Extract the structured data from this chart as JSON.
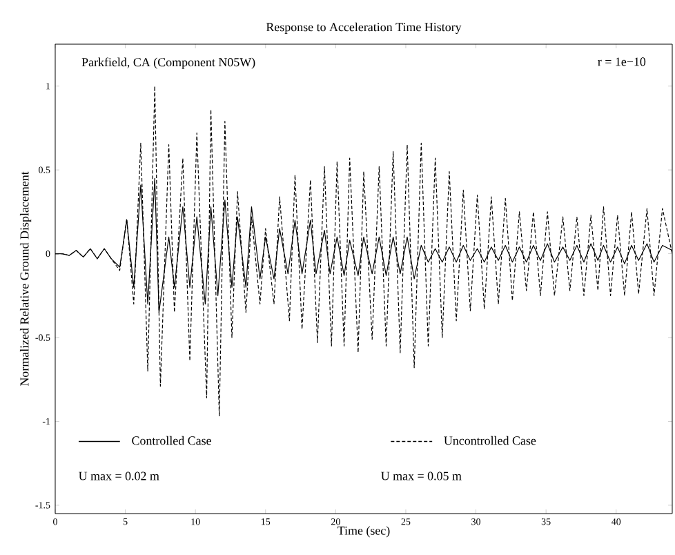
{
  "chart_data": {
    "type": "line",
    "title": "Response to Acceleration Time History",
    "xlabel": "Time (sec)",
    "ylabel": "Normalized Relative Ground Displacement",
    "annotations": [
      "Parkfield, CA (Component N05W)",
      "r = 1e−10",
      "U max = 0.02 m",
      "U max = 0.05 m"
    ],
    "xlim": [
      0,
      44
    ],
    "ylim": [
      -1.55,
      1.25
    ],
    "xticks": [
      0,
      5,
      10,
      15,
      20,
      25,
      30,
      35,
      40
    ],
    "yticks": [
      -1.5,
      -1,
      -0.5,
      0,
      0.5,
      1
    ],
    "legend": "bottom",
    "series": [
      {
        "name": "Controlled Case",
        "color": "#000000",
        "line_style": "solid",
        "x": [
          0,
          0.5,
          1,
          1.5,
          2,
          2.5,
          3,
          3.5,
          4,
          4.6,
          5.1,
          5.6,
          6.1,
          6.6,
          7.1,
          7.4,
          8.1,
          8.5,
          9.1,
          9.6,
          10.1,
          10.7,
          11.1,
          11.6,
          12.1,
          12.6,
          13.0,
          13.6,
          14.0,
          14.6,
          15.0,
          15.6,
          16.0,
          16.6,
          17.1,
          17.6,
          18.2,
          18.6,
          19.2,
          19.6,
          20.1,
          20.6,
          21.0,
          21.6,
          22.0,
          22.6,
          23.1,
          23.6,
          24.1,
          24.6,
          25.1,
          25.6,
          26.1,
          26.6,
          27.1,
          27.6,
          28.1,
          28.6,
          29.1,
          29.6,
          30.1,
          30.6,
          31.1,
          31.6,
          32.1,
          32.6,
          33.1,
          33.6,
          34.1,
          34.6,
          35.1,
          35.6,
          36.2,
          36.7,
          37.2,
          37.7,
          38.2,
          38.7,
          39.1,
          39.6,
          40.1,
          40.6,
          41.1,
          41.6,
          42.2,
          42.7,
          43.3,
          44
        ],
        "values": [
          0,
          0,
          -0.01,
          0.02,
          -0.02,
          0.03,
          -0.03,
          0.03,
          -0.03,
          -0.08,
          0.2,
          -0.2,
          0.41,
          -0.3,
          0.45,
          -0.35,
          0.1,
          -0.2,
          0.28,
          -0.2,
          0.22,
          -0.3,
          0.28,
          -0.25,
          0.32,
          -0.2,
          0.22,
          -0.2,
          0.28,
          -0.15,
          0.1,
          -0.15,
          0.15,
          -0.12,
          0.2,
          -0.12,
          0.2,
          -0.12,
          0.14,
          -0.12,
          0.1,
          -0.13,
          0.08,
          -0.13,
          0.1,
          -0.12,
          0.1,
          -0.13,
          0.1,
          -0.12,
          0.1,
          -0.15,
          0.05,
          -0.05,
          0.03,
          -0.05,
          0.04,
          -0.05,
          0.05,
          -0.04,
          0.03,
          -0.05,
          0.04,
          -0.04,
          0.05,
          -0.05,
          0.04,
          -0.05,
          0.05,
          -0.04,
          0.06,
          -0.05,
          0.04,
          -0.04,
          0.05,
          -0.05,
          0.06,
          -0.04,
          0.05,
          -0.05,
          0.04,
          -0.06,
          0.05,
          -0.04,
          0.06,
          -0.05,
          0.05,
          0.02
        ]
      },
      {
        "name": "Uncontrolled Case",
        "color": "#000000",
        "line_style": "dashed",
        "x": [
          0,
          0.5,
          1,
          1.5,
          2,
          2.5,
          3,
          3.5,
          4,
          4.6,
          5.1,
          5.6,
          6.1,
          6.6,
          7.1,
          7.5,
          8.1,
          8.5,
          9.1,
          9.6,
          10.1,
          10.8,
          11.1,
          11.7,
          12.1,
          12.6,
          13.0,
          13.6,
          14.0,
          14.6,
          15.0,
          15.6,
          16.0,
          16.7,
          17.1,
          17.6,
          18.2,
          18.7,
          19.2,
          19.7,
          20.1,
          20.6,
          21.0,
          21.6,
          22.0,
          22.6,
          23.1,
          23.6,
          24.1,
          24.6,
          25.1,
          25.6,
          26.1,
          26.6,
          27.1,
          27.6,
          28.1,
          28.6,
          29.1,
          29.6,
          30.1,
          30.6,
          31.1,
          31.6,
          32.1,
          32.6,
          33.1,
          33.6,
          34.1,
          34.6,
          35.1,
          35.6,
          36.2,
          36.7,
          37.2,
          37.7,
          38.2,
          38.7,
          39.1,
          39.6,
          40.1,
          40.6,
          41.1,
          41.6,
          42.2,
          42.7,
          43.3,
          44
        ],
        "values": [
          0,
          0,
          -0.01,
          0.02,
          -0.02,
          0.03,
          -0.03,
          0.03,
          -0.03,
          -0.1,
          0.21,
          -0.3,
          0.66,
          -0.7,
          1.0,
          -0.79,
          0.65,
          -0.35,
          0.57,
          -0.64,
          0.72,
          -0.86,
          0.86,
          -0.97,
          0.79,
          -0.5,
          0.37,
          -0.35,
          0.22,
          -0.3,
          0.15,
          -0.3,
          0.34,
          -0.4,
          0.47,
          -0.45,
          0.44,
          -0.53,
          0.52,
          -0.55,
          0.55,
          -0.55,
          0.57,
          -0.59,
          0.49,
          -0.51,
          0.52,
          -0.55,
          0.61,
          -0.59,
          0.65,
          -0.68,
          0.66,
          -0.55,
          0.57,
          -0.5,
          0.49,
          -0.4,
          0.38,
          -0.34,
          0.35,
          -0.33,
          0.34,
          -0.3,
          0.33,
          -0.28,
          0.25,
          -0.22,
          0.25,
          -0.25,
          0.25,
          -0.25,
          0.22,
          -0.22,
          0.22,
          -0.25,
          0.23,
          -0.22,
          0.28,
          -0.25,
          0.23,
          -0.25,
          0.25,
          -0.24,
          0.27,
          -0.25,
          0.27,
          0.0
        ]
      }
    ]
  }
}
